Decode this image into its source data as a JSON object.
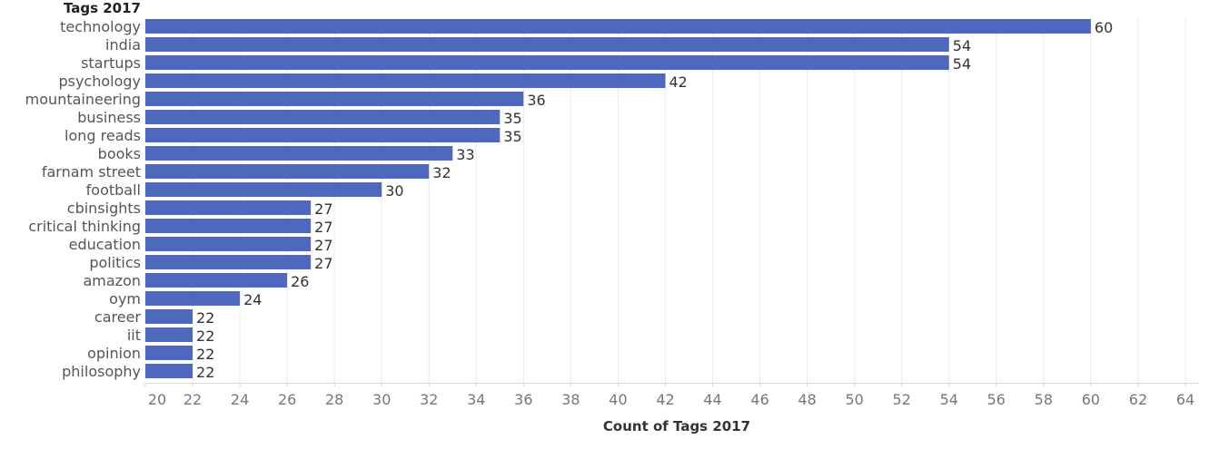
{
  "chart_data": {
    "type": "bar",
    "orientation": "horizontal",
    "row_header": "Tags 2017",
    "xlabel": "Count of Tags 2017",
    "categories": [
      "technology",
      "india",
      "startups",
      "psychology",
      "mountaineering",
      "business",
      "long reads",
      "books",
      "farnam street",
      "football",
      "cbinsights",
      "critical thinking",
      "education",
      "politics",
      "amazon",
      "oym",
      "career",
      "iit",
      "opinion",
      "philosophy"
    ],
    "values": [
      60,
      54,
      54,
      42,
      36,
      35,
      35,
      33,
      32,
      30,
      27,
      27,
      27,
      27,
      26,
      24,
      22,
      22,
      22,
      22
    ],
    "xlim": [
      20,
      64
    ],
    "xticks": [
      20,
      22,
      24,
      26,
      28,
      30,
      32,
      34,
      36,
      38,
      40,
      42,
      44,
      46,
      48,
      50,
      52,
      54,
      56,
      58,
      60,
      62,
      64
    ],
    "data_labels": true,
    "grid": "vertical",
    "bar_color": "#4f68bf"
  }
}
